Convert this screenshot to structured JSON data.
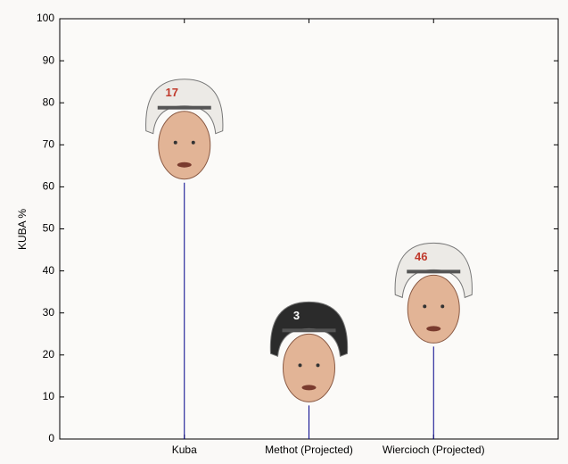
{
  "chart_data": {
    "type": "stem",
    "ylabel": "KUBA %",
    "categories": [
      "Kuba",
      "Methot (Projected)",
      "Wiercioch (Projected)"
    ],
    "values": [
      61,
      8,
      22
    ],
    "color": "#00008b",
    "marker_colors": [
      "#eceae6",
      "#2b2b2b",
      "#eceae6"
    ],
    "marker_labels": [
      "17",
      "3",
      "46"
    ],
    "ylim": [
      0,
      100
    ],
    "yticks": [
      0,
      10,
      20,
      30,
      40,
      50,
      60,
      70,
      80,
      90,
      100
    ]
  }
}
